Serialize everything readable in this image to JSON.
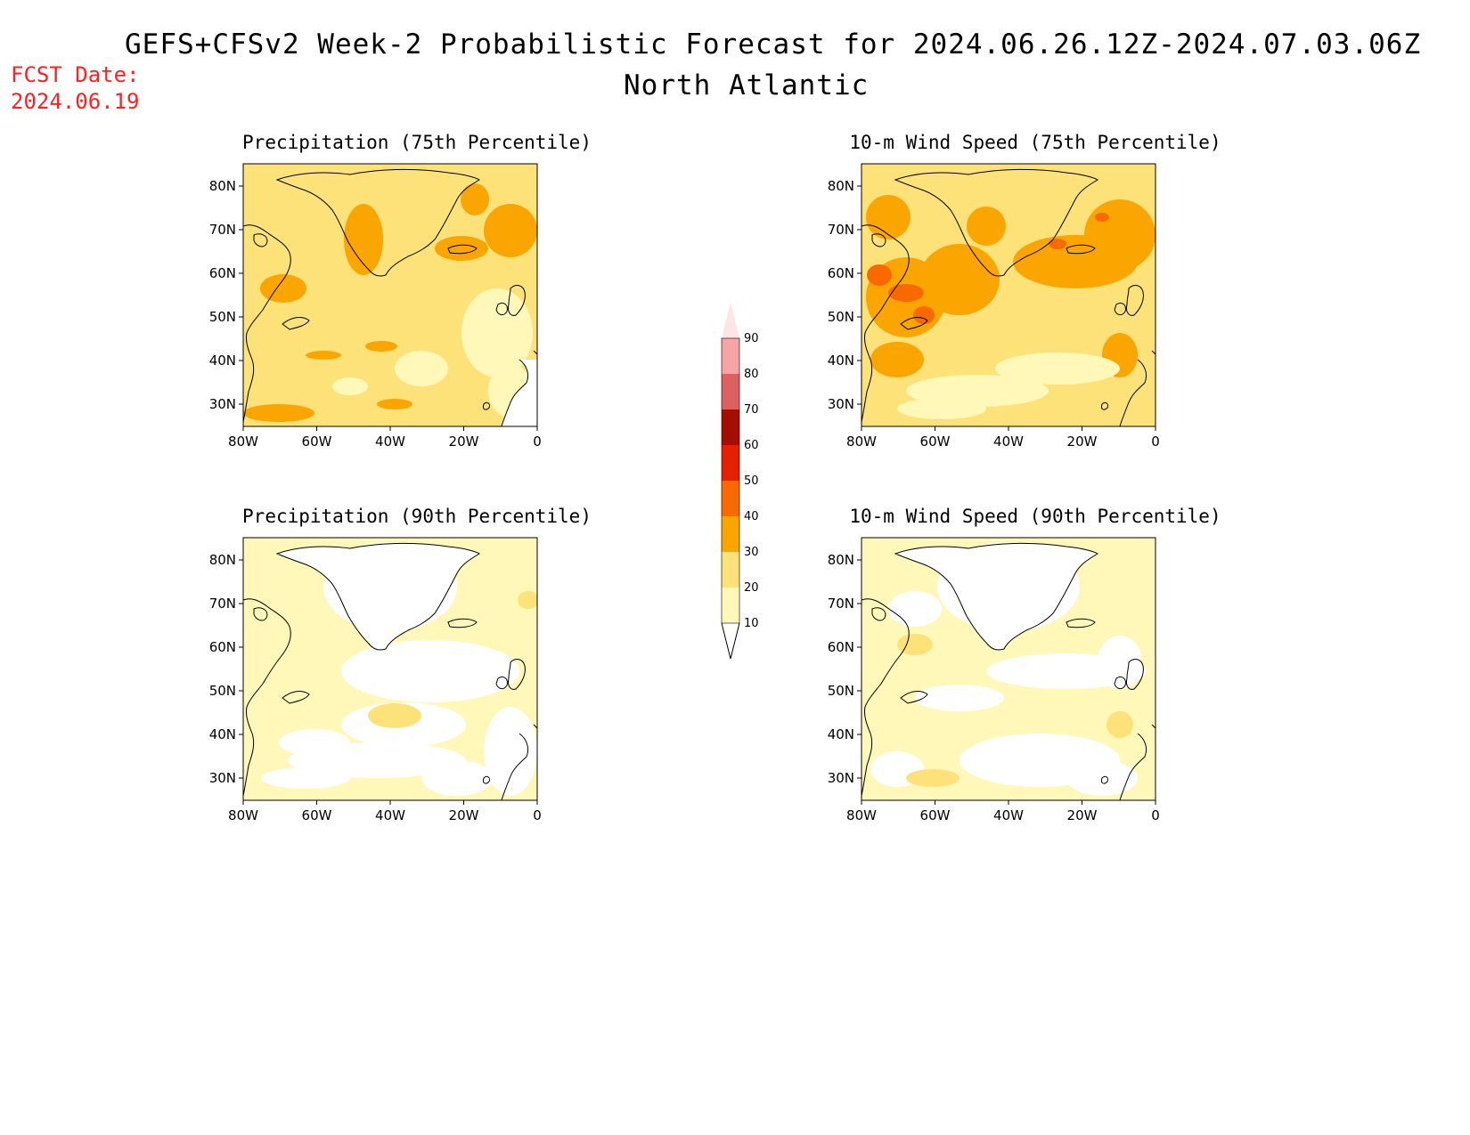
{
  "header": {
    "title": "GEFS+CFSv2 Week-2 Probabilistic Forecast for 2024.06.26.12Z-2024.07.03.06Z",
    "subtitle": "North Atlantic",
    "fcst_label": "FCST Date:",
    "fcst_date": "2024.06.19"
  },
  "colors": {
    "c10": "#fff8b8",
    "c20": "#fde27a",
    "c30": "#fba500",
    "c40": "#f86a00",
    "c50": "#e42000",
    "c60": "#a50d00",
    "c70": "#dd6060",
    "c80": "#f5a5a5",
    "c90": "#fde5e5",
    "coast": "#000000"
  },
  "colorbar": {
    "labels": [
      "90",
      "80",
      "70",
      "60",
      "50",
      "40",
      "30",
      "20",
      "10"
    ]
  },
  "axes": {
    "lat_labels": [
      "80N",
      "70N",
      "60N",
      "50N",
      "40N",
      "30N"
    ],
    "lon_labels": [
      "80W",
      "60W",
      "40W",
      "20W",
      "0"
    ]
  },
  "panels": [
    {
      "id": "p1",
      "title": "Precipitation (75th Percentile)",
      "base": "c20"
    },
    {
      "id": "p2",
      "title": "10-m Wind Speed (75th Percentile)",
      "base": "c20"
    },
    {
      "id": "p3",
      "title": "Precipitation (90th Percentile)",
      "base": "c10"
    },
    {
      "id": "p4",
      "title": "10-m Wind Speed (90th Percentile)",
      "base": "c10"
    }
  ]
}
